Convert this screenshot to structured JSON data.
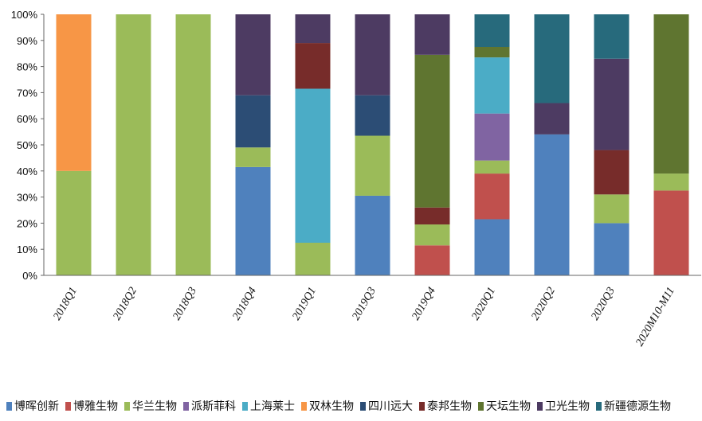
{
  "chart_data": {
    "type": "bar",
    "stacked": true,
    "categories": [
      "2018Q1",
      "2018Q2",
      "2018Q3",
      "2018Q4",
      "2019Q1",
      "2019Q3",
      "2019Q4",
      "2020Q1",
      "2020Q2",
      "2020Q3",
      "2020M10-M11"
    ],
    "ylim": [
      0,
      100
    ],
    "yticks": [
      "0%",
      "10%",
      "20%",
      "30%",
      "40%",
      "50%",
      "60%",
      "70%",
      "80%",
      "90%",
      "100%"
    ],
    "legend_position": "bottom",
    "series": [
      {
        "name": "博晖创新",
        "color": "#4F81BD",
        "values": [
          0,
          0,
          0,
          41.5,
          0,
          30.5,
          0,
          21.5,
          54,
          20,
          0
        ]
      },
      {
        "name": "博雅生物",
        "color": "#C0504D",
        "values": [
          0,
          0,
          0,
          0,
          0,
          0,
          11.5,
          17.5,
          0,
          0,
          32.5
        ]
      },
      {
        "name": "华兰生物",
        "color": "#9BBB59",
        "values": [
          40,
          100,
          100,
          7.5,
          12.5,
          23,
          8,
          5,
          0,
          11,
          6.5
        ]
      },
      {
        "name": "派斯菲科",
        "color": "#8064A2",
        "values": [
          0,
          0,
          0,
          0,
          0,
          0,
          0,
          18,
          0,
          0,
          0
        ]
      },
      {
        "name": "上海莱士",
        "color": "#4BACC6",
        "values": [
          0,
          0,
          0,
          0,
          59,
          0,
          0,
          21.5,
          0,
          0,
          0
        ]
      },
      {
        "name": "双林生物",
        "color": "#F79646",
        "values": [
          60,
          0,
          0,
          0,
          0,
          0,
          0,
          0,
          0,
          0,
          0
        ]
      },
      {
        "name": "四川远大",
        "color": "#2C4D75",
        "values": [
          0,
          0,
          0,
          20,
          0,
          15.5,
          0,
          0,
          0,
          0,
          0
        ]
      },
      {
        "name": "泰邦生物",
        "color": "#772C2A",
        "values": [
          0,
          0,
          0,
          0,
          17.5,
          0,
          6.5,
          0,
          0,
          17,
          0
        ]
      },
      {
        "name": "天坛生物",
        "color": "#5F7530",
        "values": [
          0,
          0,
          0,
          0,
          0,
          0,
          58.5,
          4,
          0,
          0,
          61
        ]
      },
      {
        "name": "卫光生物",
        "color": "#4D3B62",
        "values": [
          0,
          0,
          0,
          31,
          11,
          31,
          15.5,
          0,
          12,
          35,
          0
        ]
      },
      {
        "name": "新疆德源生物",
        "color": "#276A7C",
        "values": [
          0,
          0,
          0,
          0,
          0,
          0,
          0,
          12.5,
          34,
          17,
          0
        ]
      }
    ]
  }
}
